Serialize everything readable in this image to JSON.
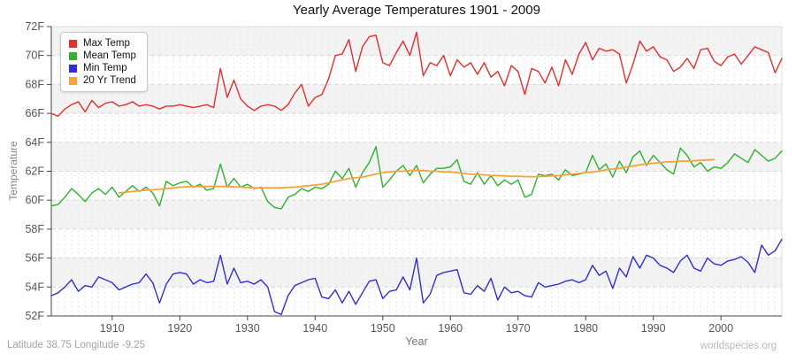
{
  "footer": {
    "left": "Latitude 38.75 Longitude -9.25",
    "right": "worldspecies.org"
  },
  "chart_data": {
    "type": "line",
    "title": "Yearly Average Temperatures 1901 - 2009",
    "xlabel": "Year",
    "ylabel": "Temperature",
    "xlim": [
      1901,
      2009
    ],
    "ylim": [
      52,
      72
    ],
    "y_ticks": [
      52,
      54,
      56,
      58,
      60,
      62,
      64,
      66,
      68,
      70,
      72
    ],
    "y_tick_suffix": "F",
    "x_ticks": [
      1910,
      1920,
      1930,
      1940,
      1950,
      1960,
      1970,
      1980,
      1990,
      2000
    ],
    "grid": true,
    "legend_position": "top-left",
    "shaded_bands": [
      [
        70,
        72
      ],
      [
        66,
        68
      ],
      [
        62,
        64
      ],
      [
        58,
        60
      ],
      [
        54,
        56
      ]
    ],
    "colors": {
      "band": "#f3f3f3",
      "hgrid": "#d8d8d8",
      "vgrid": "#e7e7e7",
      "axis": "#444444",
      "border": "#dddddd",
      "tick_text": "#555555"
    },
    "series": [
      {
        "name": "Max Temp",
        "color": "#e62e2e",
        "x_start": 1901,
        "values": [
          66.0,
          65.8,
          66.3,
          66.6,
          66.8,
          66.1,
          66.9,
          66.4,
          66.7,
          66.8,
          66.5,
          66.6,
          66.8,
          66.5,
          66.6,
          66.5,
          66.3,
          66.5,
          66.5,
          66.6,
          66.5,
          66.4,
          66.5,
          66.6,
          66.4,
          69.1,
          67.1,
          68.3,
          67.0,
          66.5,
          66.2,
          66.5,
          66.6,
          66.5,
          66.2,
          66.6,
          67.4,
          68.0,
          66.5,
          67.1,
          67.3,
          68.4,
          70.0,
          70.1,
          71.1,
          68.9,
          70.6,
          71.3,
          71.4,
          69.5,
          69.3,
          70.2,
          71.0,
          70.0,
          71.6,
          68.6,
          69.5,
          69.3,
          70.0,
          68.6,
          69.7,
          69.2,
          69.5,
          68.7,
          69.5,
          68.5,
          68.9,
          67.9,
          69.3,
          68.9,
          67.3,
          69.1,
          68.9,
          68.1,
          69.2,
          67.9,
          69.7,
          68.7,
          70.1,
          70.9,
          69.7,
          70.5,
          70.3,
          70.4,
          70.1,
          68.1,
          69.4,
          71.0,
          70.3,
          70.6,
          69.9,
          69.7,
          68.9,
          69.2,
          69.8,
          69.1,
          70.4,
          70.5,
          69.6,
          69.3,
          69.9,
          70.1,
          69.4,
          70.0,
          70.6,
          70.4,
          70.2,
          68.8,
          69.8
        ]
      },
      {
        "name": "Mean Temp",
        "color": "#2db32d",
        "x_start": 1901,
        "values": [
          59.6,
          59.7,
          60.2,
          60.8,
          60.4,
          59.9,
          60.5,
          60.8,
          60.4,
          60.9,
          60.2,
          60.6,
          61.0,
          60.6,
          60.9,
          60.5,
          59.6,
          61.3,
          61.0,
          61.2,
          61.3,
          60.9,
          61.1,
          60.7,
          60.8,
          62.5,
          60.9,
          61.5,
          60.9,
          61.1,
          60.8,
          60.9,
          59.9,
          59.5,
          59.4,
          60.2,
          60.4,
          60.8,
          60.6,
          60.9,
          60.8,
          61.1,
          62.0,
          61.5,
          62.2,
          60.9,
          61.9,
          62.6,
          63.7,
          60.9,
          61.4,
          62.0,
          62.4,
          61.7,
          62.4,
          61.2,
          61.8,
          62.2,
          62.2,
          62.3,
          62.8,
          61.3,
          61.1,
          61.9,
          61.1,
          61.7,
          61.0,
          61.4,
          61.1,
          61.4,
          60.2,
          60.4,
          61.8,
          61.7,
          61.8,
          61.4,
          62.1,
          61.7,
          61.8,
          61.9,
          63.1,
          62.1,
          62.5,
          61.6,
          62.7,
          61.9,
          63.0,
          63.4,
          62.4,
          63.1,
          62.6,
          62.1,
          61.8,
          63.6,
          63.1,
          62.3,
          62.6,
          62.0,
          62.3,
          62.2,
          62.6,
          63.2,
          62.9,
          62.6,
          63.5,
          63.1,
          62.7,
          62.9,
          63.4
        ]
      },
      {
        "name": "Min Temp",
        "color": "#3030d0",
        "x_start": 1901,
        "values": [
          53.4,
          53.6,
          54.0,
          54.5,
          53.7,
          54.1,
          54.0,
          54.7,
          54.5,
          54.3,
          53.8,
          54.0,
          54.2,
          54.3,
          54.9,
          54.3,
          52.9,
          54.2,
          54.9,
          55.0,
          54.9,
          54.2,
          54.5,
          54.3,
          54.4,
          56.2,
          54.2,
          55.3,
          54.3,
          54.4,
          54.2,
          54.5,
          54.0,
          52.3,
          52.1,
          53.4,
          54.1,
          54.3,
          54.5,
          54.6,
          53.3,
          53.2,
          53.8,
          52.9,
          53.7,
          52.8,
          53.6,
          54.4,
          54.5,
          53.2,
          53.7,
          53.8,
          54.7,
          53.8,
          56.0,
          52.9,
          53.5,
          54.8,
          55.0,
          55.1,
          55.2,
          53.6,
          53.5,
          54.1,
          53.7,
          54.6,
          53.1,
          54.0,
          53.6,
          53.7,
          53.4,
          53.3,
          54.3,
          54.0,
          54.1,
          54.2,
          54.4,
          54.5,
          54.3,
          54.5,
          55.5,
          54.8,
          55.1,
          53.9,
          55.3,
          54.7,
          56.1,
          55.3,
          56.2,
          56.0,
          55.5,
          55.3,
          55.0,
          55.8,
          56.2,
          55.3,
          55.1,
          56.0,
          55.6,
          55.5,
          55.8,
          55.9,
          56.1,
          55.7,
          55.0,
          56.9,
          56.2,
          56.5,
          57.3
        ]
      },
      {
        "name": "20 Yr Trend",
        "color": "#f7a23c",
        "x_start": 1911,
        "values": [
          60.5,
          60.55,
          60.6,
          60.65,
          60.7,
          60.72,
          60.75,
          60.8,
          60.85,
          60.9,
          60.92,
          60.95,
          60.95,
          60.95,
          60.95,
          60.95,
          60.95,
          60.92,
          60.9,
          60.88,
          60.85,
          60.85,
          60.85,
          60.85,
          60.85,
          60.88,
          60.9,
          60.95,
          61.0,
          61.05,
          61.1,
          61.2,
          61.3,
          61.4,
          61.5,
          61.55,
          61.6,
          61.7,
          61.8,
          61.9,
          61.95,
          62.0,
          62.0,
          62.05,
          62.05,
          62.05,
          62.0,
          62.0,
          61.95,
          61.95,
          61.9,
          61.85,
          61.8,
          61.78,
          61.75,
          61.72,
          61.7,
          61.68,
          61.65,
          61.65,
          61.63,
          61.62,
          61.63,
          61.65,
          61.68,
          61.7,
          61.75,
          61.8,
          61.85,
          61.9,
          61.95,
          62.0,
          62.1,
          62.15,
          62.2,
          62.3,
          62.35,
          62.45,
          62.5,
          62.55,
          62.6,
          62.65,
          62.65,
          62.7,
          62.7,
          62.72,
          62.75,
          62.78,
          62.8
        ]
      }
    ]
  }
}
